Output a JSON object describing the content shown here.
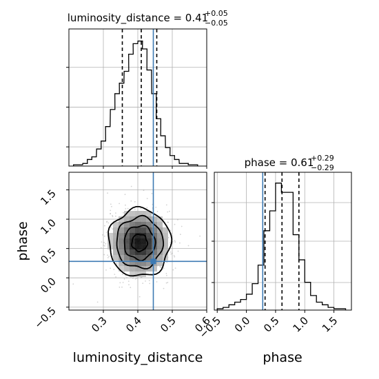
{
  "chart_data": [
    {
      "type": "histogram",
      "panel": "top-left",
      "parameter": "luminosity_distance",
      "title": {
        "main": "luminosity_distance = 0.41",
        "sup": "+0.05",
        "sub": "−0.05"
      },
      "median": 0.41,
      "quantiles": [
        0.355,
        0.41,
        0.455
      ],
      "truth": 0.445,
      "xlim": [
        0.2,
        0.6
      ],
      "grid": true,
      "bin_width": 0.0133,
      "bins": [
        {
          "x": 0.22,
          "y": 0.01
        },
        {
          "x": 0.233,
          "y": 0.01
        },
        {
          "x": 0.247,
          "y": 0.02
        },
        {
          "x": 0.26,
          "y": 0.05
        },
        {
          "x": 0.273,
          "y": 0.07
        },
        {
          "x": 0.287,
          "y": 0.13
        },
        {
          "x": 0.3,
          "y": 0.19
        },
        {
          "x": 0.313,
          "y": 0.3
        },
        {
          "x": 0.327,
          "y": 0.43
        },
        {
          "x": 0.34,
          "y": 0.55
        },
        {
          "x": 0.353,
          "y": 0.63
        },
        {
          "x": 0.367,
          "y": 0.72
        },
        {
          "x": 0.38,
          "y": 0.85
        },
        {
          "x": 0.393,
          "y": 0.93
        },
        {
          "x": 0.407,
          "y": 0.95
        },
        {
          "x": 0.42,
          "y": 0.89
        },
        {
          "x": 0.433,
          "y": 0.73
        },
        {
          "x": 0.447,
          "y": 0.55
        },
        {
          "x": 0.46,
          "y": 0.36
        },
        {
          "x": 0.473,
          "y": 0.23
        },
        {
          "x": 0.487,
          "y": 0.14
        },
        {
          "x": 0.5,
          "y": 0.08
        },
        {
          "x": 0.513,
          "y": 0.05
        },
        {
          "x": 0.527,
          "y": 0.02
        },
        {
          "x": 0.54,
          "y": 0.02
        },
        {
          "x": 0.553,
          "y": 0.01
        },
        {
          "x": 0.567,
          "y": 0.01
        }
      ]
    },
    {
      "type": "histogram",
      "panel": "bottom-right",
      "parameter": "phase",
      "title": {
        "main": "phase = 0.61",
        "sup": "+0.29",
        "sub": "−0.29"
      },
      "median": 0.61,
      "quantiles": [
        0.32,
        0.61,
        0.9
      ],
      "truth": 0.28,
      "xlim": [
        -0.55,
        1.8
      ],
      "grid": true,
      "bin_width": 0.1,
      "bins": [
        {
          "x": -0.45,
          "y": 0.01
        },
        {
          "x": -0.35,
          "y": 0.02
        },
        {
          "x": -0.25,
          "y": 0.04
        },
        {
          "x": -0.15,
          "y": 0.06
        },
        {
          "x": -0.05,
          "y": 0.08
        },
        {
          "x": 0.05,
          "y": 0.12
        },
        {
          "x": 0.15,
          "y": 0.2
        },
        {
          "x": 0.25,
          "y": 0.34
        },
        {
          "x": 0.35,
          "y": 0.6
        },
        {
          "x": 0.45,
          "y": 0.75
        },
        {
          "x": 0.55,
          "y": 0.96
        },
        {
          "x": 0.65,
          "y": 0.89
        },
        {
          "x": 0.75,
          "y": 0.89
        },
        {
          "x": 0.85,
          "y": 0.57
        },
        {
          "x": 0.95,
          "y": 0.38
        },
        {
          "x": 1.05,
          "y": 0.21
        },
        {
          "x": 1.15,
          "y": 0.11
        },
        {
          "x": 1.25,
          "y": 0.06
        },
        {
          "x": 1.35,
          "y": 0.04
        },
        {
          "x": 1.45,
          "y": 0.02
        },
        {
          "x": 1.55,
          "y": 0.01
        },
        {
          "x": 1.65,
          "y": 0.01
        }
      ]
    },
    {
      "type": "scatter",
      "panel": "bottom-left",
      "x_parameter": "luminosity_distance",
      "y_parameter": "phase",
      "xlim": [
        0.2,
        0.6
      ],
      "ylim": [
        -0.55,
        1.8
      ],
      "grid": true,
      "center": {
        "x": 0.405,
        "y": 0.6
      },
      "spread": {
        "x": 0.045,
        "y": 0.29
      },
      "n_points": 900,
      "truth": {
        "x": 0.445,
        "y": 0.28
      },
      "contour_levels": [
        0.5,
        1.0,
        1.5,
        2.0
      ]
    }
  ],
  "axes": {
    "x_bottom_left": {
      "label": "luminosity_distance",
      "ticks": [
        "0.3",
        "0.4",
        "0.5",
        "0.6"
      ],
      "tick_values": [
        0.3,
        0.4,
        0.5,
        0.6
      ]
    },
    "y_bottom_left": {
      "label": "phase",
      "ticks": [
        "−0.5",
        "0.0",
        "0.5",
        "1.0",
        "1.5"
      ],
      "tick_values": [
        -0.5,
        0.0,
        0.5,
        1.0,
        1.5
      ]
    },
    "x_bottom_right": {
      "label": "phase",
      "ticks": [
        "−0.5",
        "0.0",
        "0.5",
        "1.0",
        "1.5"
      ],
      "tick_values": [
        -0.5,
        0.0,
        0.5,
        1.0,
        1.5
      ]
    }
  },
  "colors": {
    "truth": "#3d7ab3",
    "hist": "#000000",
    "grid": "#b0b0b0",
    "points": "#9c9c9c"
  }
}
